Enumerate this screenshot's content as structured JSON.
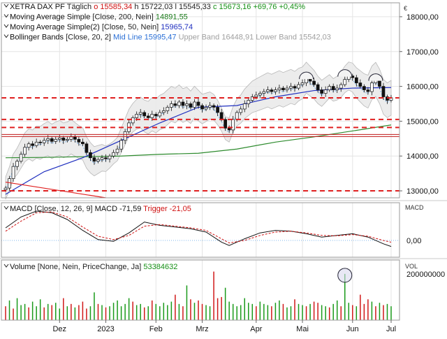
{
  "currency": "€",
  "chart_data": [
    {
      "type": "line",
      "panel": "price",
      "header": [
        {
          "icon": "chevron-down-icon",
          "label": "XETRA DAX PF",
          "parts": [
            {
              "text": "Täglich",
              "color": "#222222"
            },
            {
              "text": "o 15585,34",
              "color": "#d01010"
            },
            {
              "text": "h 15722,03",
              "color": "#222222"
            },
            {
              "text": "l 15545,33",
              "color": "#222222"
            },
            {
              "text": "c 15673,16",
              "color": "#169016"
            },
            {
              "text": "+69,76",
              "color": "#169016"
            },
            {
              "text": "+0,45%",
              "color": "#169016"
            }
          ]
        },
        {
          "icon": "chevron-down-icon",
          "label": "Moving Average Simple",
          "parts": [
            {
              "text": "[Close, 200, Nein]",
              "color": "#222222"
            },
            {
              "text": "14891,55",
              "color": "#1a7a1a"
            }
          ]
        },
        {
          "icon": "chevron-down-icon",
          "label": "Moving Average Simple(2)",
          "parts": [
            {
              "text": "[Close, 50, Nein]",
              "color": "#222222"
            },
            {
              "text": "15965,74",
              "color": "#1f2fbf"
            }
          ]
        },
        {
          "icon": "chevron-down-icon",
          "label": "Bollinger Bands",
          "parts": [
            {
              "text": "[Close, 20, 2]",
              "color": "#222222"
            },
            {
              "text": "Mid Line 15995,47",
              "color": "#2a6fd6"
            },
            {
              "text": "Upper Band 16448,91",
              "color": "#a0a0a0"
            },
            {
              "text": "Lower Band 15542,03",
              "color": "#a0a0a0"
            }
          ]
        }
      ],
      "y_ticks": [
        "18000,00",
        "17000,00",
        "16000,00",
        "15000,00",
        "14000,00",
        "13000,00"
      ],
      "ylim": [
        12800,
        18400
      ],
      "support_lines": [
        15670,
        15050,
        14820,
        13000
      ],
      "price_series": [
        [
          0,
          13080
        ],
        [
          1,
          13350
        ],
        [
          2,
          13700
        ],
        [
          3,
          13850
        ],
        [
          4,
          14050
        ],
        [
          5,
          14250
        ],
        [
          6,
          14350
        ],
        [
          7,
          14300
        ],
        [
          8,
          14400
        ],
        [
          9,
          14380
        ],
        [
          10,
          14450
        ],
        [
          11,
          14500
        ],
        [
          12,
          14420
        ],
        [
          13,
          14480
        ],
        [
          14,
          14520
        ],
        [
          15,
          14450
        ],
        [
          16,
          14480
        ],
        [
          17,
          14550
        ],
        [
          18,
          14480
        ],
        [
          19,
          14400
        ],
        [
          20,
          14350
        ],
        [
          21,
          14100
        ],
        [
          22,
          13950
        ],
        [
          23,
          13850
        ],
        [
          24,
          13900
        ],
        [
          25,
          13950
        ],
        [
          26,
          13920
        ],
        [
          27,
          14000
        ],
        [
          28,
          14100
        ],
        [
          29,
          14200
        ],
        [
          30,
          14450
        ],
        [
          31,
          14700
        ],
        [
          32,
          14950
        ],
        [
          33,
          15100
        ],
        [
          34,
          15200
        ],
        [
          35,
          15250
        ],
        [
          36,
          15150
        ],
        [
          37,
          15100
        ],
        [
          38,
          15200
        ],
        [
          39,
          15150
        ],
        [
          40,
          15250
        ],
        [
          41,
          15300
        ],
        [
          42,
          15400
        ],
        [
          43,
          15500
        ],
        [
          44,
          15450
        ],
        [
          45,
          15550
        ],
        [
          46,
          15450
        ],
        [
          47,
          15500
        ],
        [
          48,
          15400
        ],
        [
          49,
          15550
        ],
        [
          50,
          15450
        ],
        [
          51,
          15350
        ],
        [
          52,
          15400
        ],
        [
          53,
          15450
        ],
        [
          54,
          15400
        ],
        [
          55,
          15250
        ],
        [
          56,
          15050
        ],
        [
          57,
          14800
        ],
        [
          58,
          14750
        ],
        [
          59,
          15050
        ],
        [
          60,
          15250
        ],
        [
          61,
          15350
        ],
        [
          62,
          15500
        ],
        [
          63,
          15600
        ],
        [
          64,
          15700
        ],
        [
          65,
          15750
        ],
        [
          66,
          15800
        ],
        [
          67,
          15850
        ],
        [
          68,
          15900
        ],
        [
          69,
          15850
        ],
        [
          70,
          15900
        ],
        [
          71,
          15950
        ],
        [
          72,
          15900
        ],
        [
          73,
          15950
        ],
        [
          74,
          16000
        ],
        [
          75,
          15950
        ],
        [
          76,
          16050
        ],
        [
          77,
          16100
        ],
        [
          78,
          16250
        ],
        [
          79,
          16150
        ],
        [
          80,
          16050
        ],
        [
          81,
          15900
        ],
        [
          82,
          15800
        ],
        [
          83,
          15900
        ],
        [
          84,
          16000
        ],
        [
          85,
          15900
        ],
        [
          86,
          15950
        ],
        [
          87,
          16050
        ],
        [
          88,
          16200
        ],
        [
          89,
          16300
        ],
        [
          90,
          16250
        ],
        [
          91,
          16100
        ],
        [
          92,
          16000
        ],
        [
          93,
          15900
        ],
        [
          94,
          15850
        ],
        [
          95,
          16100
        ],
        [
          96,
          16200
        ],
        [
          97,
          16000
        ],
        [
          98,
          15700
        ],
        [
          99,
          15600
        ],
        [
          100,
          15673
        ]
      ],
      "series": [
        {
          "name": "Moving Average Simple",
          "color": "#2e8b2e",
          "points": [
            [
              0,
              13950
            ],
            [
              10,
              13960
            ],
            [
              20,
              13980
            ],
            [
              30,
              14000
            ],
            [
              40,
              14050
            ],
            [
              50,
              14080
            ],
            [
              60,
              14200
            ],
            [
              70,
              14400
            ],
            [
              80,
              14550
            ],
            [
              90,
              14720
            ],
            [
              100,
              14892
            ]
          ]
        },
        {
          "name": "Moving Average Simple(2)",
          "color": "#1f2fbf",
          "points": [
            [
              0,
              12900
            ],
            [
              10,
              13550
            ],
            [
              20,
              13950
            ],
            [
              30,
              14450
            ],
            [
              40,
              14950
            ],
            [
              50,
              15400
            ],
            [
              60,
              15450
            ],
            [
              70,
              15700
            ],
            [
              80,
              15880
            ],
            [
              90,
              15950
            ],
            [
              100,
              15966
            ]
          ]
        }
      ]
    },
    {
      "type": "line",
      "panel": "macd",
      "header": {
        "icon": "chevron-down-icon",
        "label": "MACD",
        "parts": [
          {
            "text": "[Close, 12, 26, 9]",
            "color": "#222222"
          },
          {
            "text": "MACD -71,59",
            "color": "#111111"
          },
          {
            "text": "Trigger -21,05",
            "color": "#d01010"
          }
        ]
      },
      "axis_title": "MACD",
      "y_ticks": [
        "0,00"
      ],
      "ylim": [
        -200,
        450
      ],
      "series": [
        {
          "name": "MACD",
          "color": "#111111",
          "points": [
            [
              0,
              150
            ],
            [
              4,
              280
            ],
            [
              8,
              350
            ],
            [
              12,
              330
            ],
            [
              16,
              250
            ],
            [
              20,
              120
            ],
            [
              24,
              10
            ],
            [
              28,
              -10
            ],
            [
              32,
              90
            ],
            [
              36,
              220
            ],
            [
              40,
              180
            ],
            [
              44,
              160
            ],
            [
              48,
              140
            ],
            [
              52,
              100
            ],
            [
              56,
              -20
            ],
            [
              58,
              -60
            ],
            [
              62,
              20
            ],
            [
              66,
              90
            ],
            [
              70,
              120
            ],
            [
              74,
              110
            ],
            [
              78,
              80
            ],
            [
              82,
              40
            ],
            [
              86,
              60
            ],
            [
              90,
              80
            ],
            [
              94,
              40
            ],
            [
              98,
              -40
            ],
            [
              100,
              -72
            ]
          ]
        },
        {
          "name": "Trigger",
          "color": "#d01010",
          "points": [
            [
              0,
              110
            ],
            [
              4,
              230
            ],
            [
              8,
              330
            ],
            [
              12,
              340
            ],
            [
              16,
              280
            ],
            [
              20,
              160
            ],
            [
              24,
              50
            ],
            [
              28,
              10
            ],
            [
              32,
              60
            ],
            [
              36,
              170
            ],
            [
              40,
              190
            ],
            [
              44,
              170
            ],
            [
              48,
              150
            ],
            [
              52,
              120
            ],
            [
              56,
              20
            ],
            [
              58,
              -30
            ],
            [
              62,
              0
            ],
            [
              66,
              60
            ],
            [
              70,
              100
            ],
            [
              74,
              110
            ],
            [
              78,
              90
            ],
            [
              82,
              60
            ],
            [
              86,
              55
            ],
            [
              90,
              70
            ],
            [
              94,
              50
            ],
            [
              98,
              0
            ],
            [
              100,
              -21
            ]
          ]
        }
      ]
    },
    {
      "type": "bar",
      "panel": "volume",
      "header": {
        "icon": "chevron-down-icon",
        "label": "Volume",
        "parts": [
          {
            "text": "[None, Nein, PriceChange, Ja]",
            "color": "#222222"
          },
          {
            "text": "53384632",
            "color": "#169016"
          }
        ]
      },
      "axis_title": "VOL",
      "y_ticks": [
        "200000000"
      ],
      "ylim": [
        0,
        260000000
      ],
      "values": [
        60,
        85,
        50,
        95,
        65,
        70,
        55,
        80,
        60,
        90,
        55,
        70,
        65,
        75,
        50,
        95,
        60,
        70,
        55,
        65,
        80,
        50,
        60,
        120,
        70,
        65,
        55,
        60,
        75,
        85,
        60,
        70,
        95,
        80,
        65,
        70,
        55,
        60,
        85,
        70,
        60,
        75,
        65,
        80,
        110,
        70,
        60,
        150,
        90,
        75,
        85,
        70,
        65,
        60,
        210,
        95,
        100,
        140,
        80,
        70,
        60,
        65,
        95,
        75,
        70,
        60,
        80,
        70,
        65,
        60,
        75,
        85,
        70,
        55,
        60,
        90,
        70,
        65,
        60,
        70,
        80,
        75,
        65,
        60,
        55,
        70,
        85,
        60,
        200,
        75,
        65,
        60,
        110,
        70,
        90,
        80,
        60,
        75,
        65,
        70,
        60
      ],
      "colors": [
        "r",
        "g",
        "r",
        "g",
        "g",
        "g",
        "r",
        "g",
        "g",
        "g",
        "r",
        "g",
        "r",
        "g",
        "g",
        "r",
        "g",
        "r",
        "g",
        "r",
        "r",
        "r",
        "g",
        "g",
        "r",
        "g",
        "r",
        "g",
        "g",
        "g",
        "g",
        "g",
        "g",
        "r",
        "g",
        "g",
        "r",
        "g",
        "r",
        "g",
        "g",
        "g",
        "g",
        "g",
        "r",
        "g",
        "r",
        "g",
        "r",
        "g",
        "r",
        "r",
        "g",
        "g",
        "r",
        "r",
        "r",
        "g",
        "g",
        "g",
        "g",
        "g",
        "g",
        "g",
        "g",
        "r",
        "g",
        "g",
        "g",
        "r",
        "g",
        "g",
        "r",
        "g",
        "g",
        "r",
        "g",
        "g",
        "r",
        "g",
        "r",
        "r",
        "g",
        "g",
        "r",
        "g",
        "g",
        "r",
        "g",
        "g",
        "r",
        "g",
        "r",
        "r",
        "r",
        "g",
        "r",
        "g",
        "r",
        "g",
        "g"
      ]
    }
  ],
  "x_labels": [
    {
      "label": "Dez",
      "i": 14
    },
    {
      "label": "2023",
      "i": 26
    },
    {
      "label": "Feb",
      "i": 39
    },
    {
      "label": "Mrz",
      "i": 51
    },
    {
      "label": "Apr",
      "i": 65
    },
    {
      "label": "Mai",
      "i": 77
    },
    {
      "label": "Jun",
      "i": 90
    },
    {
      "label": "Jul",
      "i": 100
    }
  ]
}
